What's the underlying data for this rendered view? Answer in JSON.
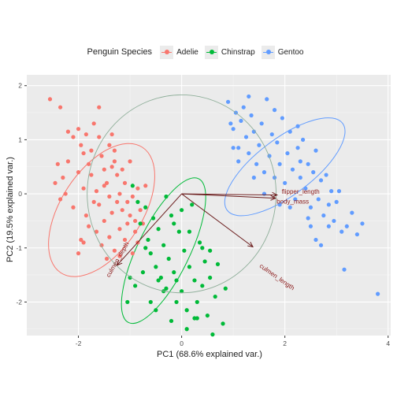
{
  "chart_data": {
    "type": "scatter",
    "title": "",
    "xlabel": "PC1 (68.6% explained var.)",
    "ylabel": "PC2 (19.5% explained var.)",
    "xlim": [
      -3.0,
      4.05
    ],
    "ylim": [
      -2.62,
      2.2
    ],
    "x_ticks": [
      -2,
      0,
      2,
      4
    ],
    "y_ticks": [
      -2,
      -1,
      0,
      1,
      2
    ],
    "grid": true,
    "legend": {
      "title": "Penguin Species",
      "position": "top"
    },
    "series": [
      {
        "name": "Adelie",
        "color": "#F8766D",
        "ellipse": {
          "cx": -1.55,
          "cy": -0.3,
          "rx": 1.45,
          "ry": 0.75,
          "angle_deg": -57
        },
        "points": [
          [
            -2.55,
            1.75
          ],
          [
            -2.35,
            1.6
          ],
          [
            -2.2,
            1.15
          ],
          [
            -2.1,
            1.05
          ],
          [
            -2.0,
            1.2
          ],
          [
            -1.95,
            0.9
          ],
          [
            -1.85,
            1.1
          ],
          [
            -1.9,
            0.75
          ],
          [
            -1.8,
            0.55
          ],
          [
            -1.75,
            0.8
          ],
          [
            -1.7,
            1.3
          ],
          [
            -1.6,
            1.05
          ],
          [
            -1.55,
            0.7
          ],
          [
            -1.5,
            0.45
          ],
          [
            -1.45,
            0.2
          ],
          [
            -1.4,
            0.9
          ],
          [
            -1.35,
            1.1
          ],
          [
            -1.3,
            0.6
          ],
          [
            -1.25,
            0.35
          ],
          [
            -1.2,
            0.0
          ],
          [
            -1.15,
            -0.3
          ],
          [
            -1.1,
            0.2
          ],
          [
            -1.0,
            0.6
          ],
          [
            -0.95,
            -0.05
          ],
          [
            -0.9,
            -0.5
          ],
          [
            -0.85,
            0.1
          ],
          [
            -2.4,
            0.55
          ],
          [
            -2.3,
            0.3
          ],
          [
            -2.25,
            0.0
          ],
          [
            -2.35,
            -0.1
          ],
          [
            -2.1,
            -0.25
          ],
          [
            -2.0,
            0.4
          ],
          [
            -1.9,
            0.1
          ],
          [
            -1.85,
            -0.4
          ],
          [
            -1.8,
            -0.6
          ],
          [
            -1.7,
            -0.15
          ],
          [
            -1.65,
            -0.7
          ],
          [
            -1.6,
            -0.2
          ],
          [
            -1.55,
            -0.95
          ],
          [
            -1.5,
            -0.5
          ],
          [
            -1.4,
            -0.8
          ],
          [
            -1.35,
            -0.35
          ],
          [
            -1.3,
            -1.05
          ],
          [
            -1.2,
            -0.65
          ],
          [
            -1.1,
            -0.85
          ],
          [
            -1.0,
            -0.4
          ],
          [
            -0.95,
            -1.1
          ],
          [
            -0.9,
            -0.7
          ],
          [
            -0.8,
            -0.3
          ],
          [
            -1.95,
            -0.85
          ],
          [
            -2.0,
            -1.1
          ],
          [
            -1.9,
            -0.9
          ],
          [
            -2.2,
            0.6
          ],
          [
            -1.6,
            1.6
          ],
          [
            -1.3,
            0.8
          ],
          [
            -1.15,
            0.45
          ],
          [
            -1.05,
            -0.15
          ],
          [
            -0.75,
            -0.55
          ],
          [
            -1.45,
            -1.2
          ],
          [
            -1.25,
            -0.15
          ],
          [
            -2.45,
            0.2
          ],
          [
            -1.75,
            0.35
          ],
          [
            -1.65,
            0.05
          ],
          [
            -1.5,
            0.15
          ],
          [
            -1.4,
            -0.05
          ],
          [
            -0.7,
            0.15
          ],
          [
            -1.2,
            -1.15
          ],
          [
            -0.85,
            -0.9
          ],
          [
            -1.05,
            -0.55
          ],
          [
            -1.35,
            0.5
          ]
        ]
      },
      {
        "name": "Chinstrap",
        "color": "#00BA38",
        "ellipse": {
          "cx": -0.35,
          "cy": -1.05,
          "rx": 1.55,
          "ry": 0.48,
          "angle_deg": -64
        },
        "points": [
          [
            -0.95,
            0.15
          ],
          [
            -0.85,
            -0.15
          ],
          [
            -0.8,
            -0.55
          ],
          [
            -0.7,
            -0.25
          ],
          [
            -0.65,
            -0.85
          ],
          [
            -0.6,
            -1.1
          ],
          [
            -0.55,
            -0.45
          ],
          [
            -0.5,
            -1.35
          ],
          [
            -0.45,
            -0.65
          ],
          [
            -0.4,
            -1.55
          ],
          [
            -0.35,
            -0.95
          ],
          [
            -0.3,
            -1.75
          ],
          [
            -0.25,
            -1.2
          ],
          [
            -0.2,
            -0.4
          ],
          [
            -0.15,
            -1.45
          ],
          [
            -0.1,
            -2.0
          ],
          [
            -0.05,
            -0.7
          ],
          [
            0.0,
            -1.8
          ],
          [
            0.05,
            -1.05
          ],
          [
            0.1,
            -2.15
          ],
          [
            0.15,
            -1.35
          ],
          [
            0.2,
            -0.2
          ],
          [
            0.25,
            -1.6
          ],
          [
            0.3,
            -2.0
          ],
          [
            0.35,
            -0.9
          ],
          [
            0.4,
            -1.7
          ],
          [
            0.45,
            -1.25
          ],
          [
            0.5,
            -2.25
          ],
          [
            0.55,
            -1.55
          ],
          [
            0.6,
            -2.6
          ],
          [
            0.65,
            -1.9
          ],
          [
            0.7,
            -1.3
          ],
          [
            0.8,
            -2.4
          ],
          [
            0.85,
            -1.75
          ],
          [
            -0.75,
            -1.45
          ],
          [
            -0.9,
            -1.7
          ],
          [
            -0.6,
            -2.0
          ],
          [
            -0.5,
            -2.15
          ],
          [
            -0.2,
            -2.35
          ],
          [
            0.1,
            -2.5
          ],
          [
            0.3,
            -2.3
          ],
          [
            -1.05,
            -2.0
          ],
          [
            -0.3,
            -0.05
          ],
          [
            -0.15,
            -0.55
          ],
          [
            0.0,
            -0.3
          ],
          [
            0.15,
            -0.7
          ],
          [
            -0.35,
            -1.8
          ],
          [
            -1.0,
            -1.55
          ],
          [
            0.4,
            -1.0
          ],
          [
            0.55,
            -1.05
          ],
          [
            -0.1,
            -1.6
          ],
          [
            0.25,
            -2.3
          ],
          [
            -0.7,
            -1.0
          ],
          [
            -0.45,
            -1.6
          ]
        ]
      },
      {
        "name": "Gentoo",
        "color": "#619CFF",
        "ellipse": {
          "cx": 2.0,
          "cy": 0.5,
          "rx": 1.4,
          "ry": 0.52,
          "angle_deg": -37
        },
        "points": [
          [
            0.9,
            1.7
          ],
          [
            1.0,
            1.2
          ],
          [
            1.05,
            1.5
          ],
          [
            1.1,
            0.85
          ],
          [
            1.15,
            1.35
          ],
          [
            1.2,
            1.6
          ],
          [
            1.25,
            1.05
          ],
          [
            1.3,
            0.75
          ],
          [
            1.35,
            1.45
          ],
          [
            1.4,
            1.15
          ],
          [
            1.45,
            0.55
          ],
          [
            1.5,
            0.9
          ],
          [
            1.55,
            1.3
          ],
          [
            1.6,
            0.4
          ],
          [
            1.65,
            1.75
          ],
          [
            1.7,
            0.7
          ],
          [
            1.75,
            1.1
          ],
          [
            1.8,
            0.3
          ],
          [
            1.85,
            0.95
          ],
          [
            1.9,
            0.55
          ],
          [
            1.95,
            1.4
          ],
          [
            2.0,
            0.2
          ],
          [
            2.05,
            0.75
          ],
          [
            2.1,
            1.15
          ],
          [
            2.15,
            0.45
          ],
          [
            2.2,
            -0.1
          ],
          [
            2.25,
            0.85
          ],
          [
            2.3,
            0.3
          ],
          [
            2.35,
            1.0
          ],
          [
            2.4,
            0.1
          ],
          [
            2.45,
            0.55
          ],
          [
            2.5,
            -0.25
          ],
          [
            2.55,
            0.4
          ],
          [
            2.6,
            0.8
          ],
          [
            2.65,
            -0.1
          ],
          [
            2.7,
            0.25
          ],
          [
            2.75,
            -0.4
          ],
          [
            2.8,
            0.35
          ],
          [
            2.85,
            -0.2
          ],
          [
            2.9,
            0.05
          ],
          [
            2.95,
            -0.5
          ],
          [
            3.0,
            -0.15
          ],
          [
            3.1,
            -0.7
          ],
          [
            3.2,
            -0.6
          ],
          [
            3.4,
            -0.75
          ],
          [
            3.5,
            -0.55
          ],
          [
            3.15,
            -1.4
          ],
          [
            3.8,
            -1.85
          ],
          [
            2.6,
            -0.85
          ],
          [
            2.7,
            -0.95
          ],
          [
            2.5,
            -0.6
          ],
          [
            1.0,
            0.85
          ],
          [
            1.1,
            0.6
          ],
          [
            1.4,
            0.3
          ],
          [
            1.6,
            0.0
          ],
          [
            1.9,
            -0.2
          ],
          [
            2.3,
            0.6
          ],
          [
            2.45,
            -0.45
          ],
          [
            3.05,
            0.05
          ],
          [
            2.25,
            1.25
          ],
          [
            1.8,
            1.55
          ],
          [
            0.95,
            1.3
          ],
          [
            1.3,
            1.8
          ],
          [
            2.1,
            -0.25
          ],
          [
            2.85,
            -0.6
          ],
          [
            3.3,
            -0.35
          ]
        ]
      }
    ],
    "unit_circle": {
      "cx": 0,
      "cy": 0,
      "r": 1.83,
      "color": "#8FAF9A"
    },
    "arrows": [
      {
        "label": "flipper_length",
        "x": 1.85,
        "y": -0.02
      },
      {
        "label": "body_mass",
        "x": 1.82,
        "y": -0.08
      },
      {
        "label": "culmen_length",
        "x": 1.38,
        "y": -0.98
      },
      {
        "label": "culmen_depth",
        "x": -1.25,
        "y": -1.32
      }
    ],
    "arrow_labels": [
      {
        "text": "flipper_length",
        "x": 1.94,
        "y": 0.0,
        "angle": 0
      },
      {
        "text": "body_mass",
        "x": 1.84,
        "y": -0.18,
        "angle": 0
      },
      {
        "text": "culmen_length",
        "x": 1.5,
        "y": -1.35,
        "angle": 35
      },
      {
        "text": "culmen_depth",
        "x": -1.4,
        "y": -1.55,
        "angle": -60
      }
    ]
  }
}
